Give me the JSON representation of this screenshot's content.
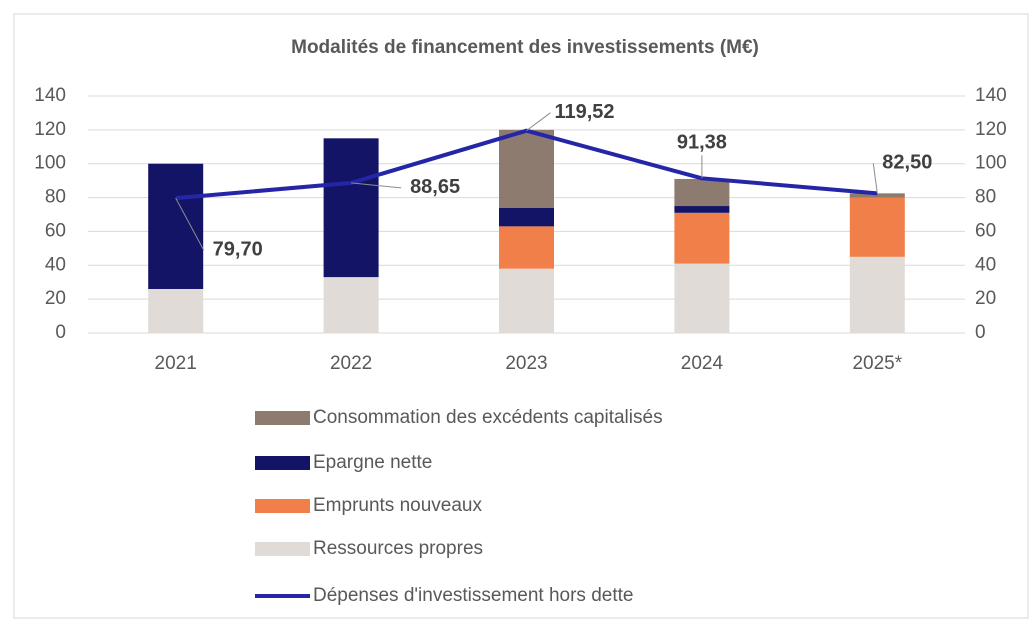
{
  "chart_data": {
    "type": "bar",
    "stacked": true,
    "title": "Modalités de financement des investissements (M€)",
    "categories": [
      "2021",
      "2022",
      "2023",
      "2024",
      "2025*"
    ],
    "ylim": [
      0,
      140
    ],
    "yticks": [
      0,
      20,
      40,
      60,
      80,
      100,
      120,
      140
    ],
    "y2lim": [
      0,
      140
    ],
    "y2ticks": [
      0,
      20,
      40,
      60,
      80,
      100,
      120,
      140
    ],
    "grid": true,
    "legend": "bottom",
    "series": [
      {
        "name": "Consommation des excédents capitalisés",
        "color": "#8c7b6e",
        "values": [
          0,
          0,
          46,
          16,
          2.5
        ]
      },
      {
        "name": "Epargne nette",
        "color": "#141466",
        "values": [
          74,
          82,
          11,
          4,
          0
        ]
      },
      {
        "name": "Emprunts nouveaux",
        "color": "#f07f4a",
        "values": [
          0,
          0,
          25,
          30,
          35
        ]
      },
      {
        "name": "Ressources propres",
        "color": "#e0dbd7",
        "values": [
          26,
          33,
          38,
          41,
          45
        ]
      },
      {
        "name": "Dépenses d'investissement hors dette",
        "color": "#2525a8",
        "type": "line",
        "axis": "y2",
        "values": [
          79.7,
          88.65,
          119.52,
          91.38,
          82.5
        ],
        "value_labels": [
          "79,70",
          "88,65",
          "119,52",
          "91,38",
          "82,50"
        ]
      }
    ]
  }
}
